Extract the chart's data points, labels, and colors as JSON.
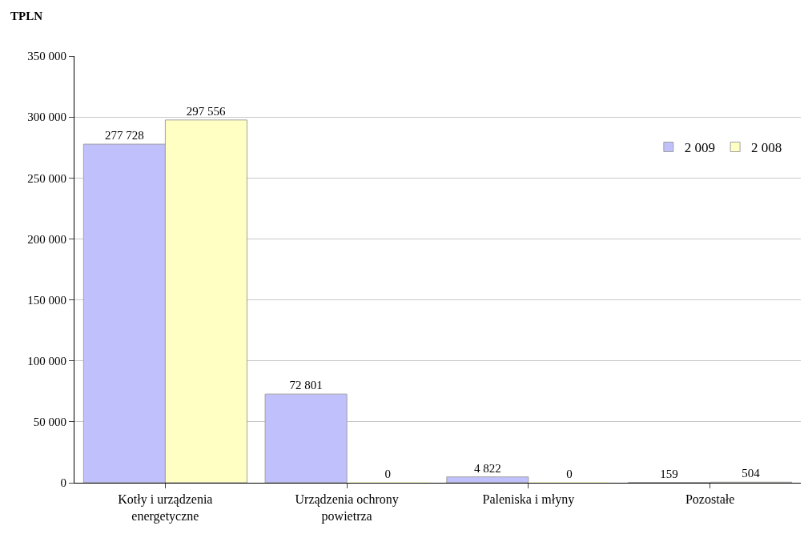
{
  "chart_data": {
    "type": "bar",
    "ylabel": "TPLN",
    "categories": [
      "Kotły i urządzenia energetyczne",
      "Urządzenia ochrony powietrza",
      "Paleniska i młyny",
      "Pozostałe"
    ],
    "series": [
      {
        "name": "2 009",
        "color": "#c0c0fc",
        "values": [
          277728,
          72801,
          4822,
          159
        ],
        "value_labels": [
          "277 728",
          "72 801",
          "4 822",
          "159"
        ]
      },
      {
        "name": "2 008",
        "color": "#ffffc4",
        "values": [
          297556,
          0,
          0,
          504
        ],
        "value_labels": [
          "297 556",
          "0",
          "0",
          "504"
        ]
      }
    ],
    "ylim": [
      0,
      350000
    ],
    "yticks": [
      {
        "value": 0,
        "label": "0"
      },
      {
        "value": 50000,
        "label": "50 000"
      },
      {
        "value": 100000,
        "label": "100 000"
      },
      {
        "value": 150000,
        "label": "150 000"
      },
      {
        "value": 200000,
        "label": "200 000"
      },
      {
        "value": 250000,
        "label": "250 000"
      },
      {
        "value": 300000,
        "label": "300 000"
      },
      {
        "value": 350000,
        "label": "350 000"
      }
    ],
    "grid": "y",
    "legend": "top right"
  }
}
